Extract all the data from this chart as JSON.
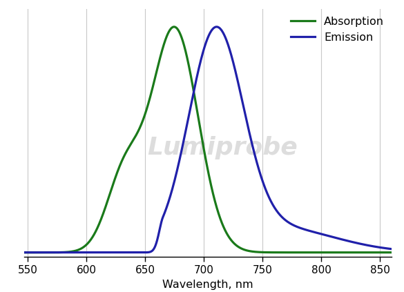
{
  "absorption_color": "#1a7a1a",
  "emission_color": "#2020aa",
  "xlim": [
    547,
    860
  ],
  "ylim": [
    -0.02,
    1.08
  ],
  "xticks": [
    550,
    600,
    650,
    700,
    750,
    800,
    850
  ],
  "xlabel": "Wavelength, nm",
  "legend_labels": [
    "Absorption",
    "Emission"
  ],
  "bg_color": "#ffffff",
  "grid_color": "#c8c8c8",
  "linewidth": 2.3
}
